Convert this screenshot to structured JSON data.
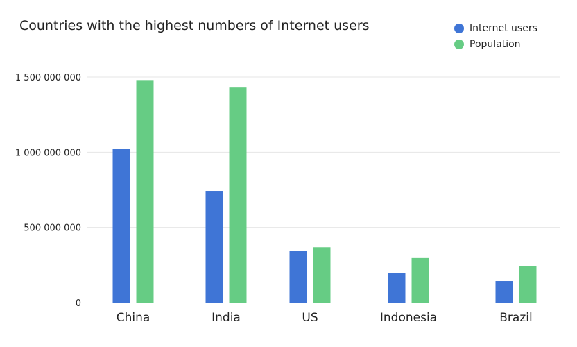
{
  "chart_data": {
    "type": "bar",
    "title": "Countries with the highest numbers of Internet users",
    "xlabel": "",
    "ylabel": "",
    "categories": [
      "China",
      "India",
      "US",
      "Indonesia",
      "Brazil"
    ],
    "series": [
      {
        "name": "Internet users",
        "color": "#3f75d6",
        "values": [
          1020000000,
          743000000,
          345000000,
          198000000,
          143000000
        ]
      },
      {
        "name": "Population",
        "color": "#66cc84",
        "values": [
          1480000000,
          1430000000,
          368000000,
          296000000,
          240000000
        ]
      }
    ],
    "ylim": [
      0,
      1500000000
    ],
    "yticks": [
      0,
      500000000,
      1000000000,
      1500000000
    ],
    "ytick_labels": [
      "0",
      "500 000 000",
      "1 000 000 000",
      "1 500 000 000"
    ],
    "grid": true,
    "legend_position": "top-right"
  }
}
